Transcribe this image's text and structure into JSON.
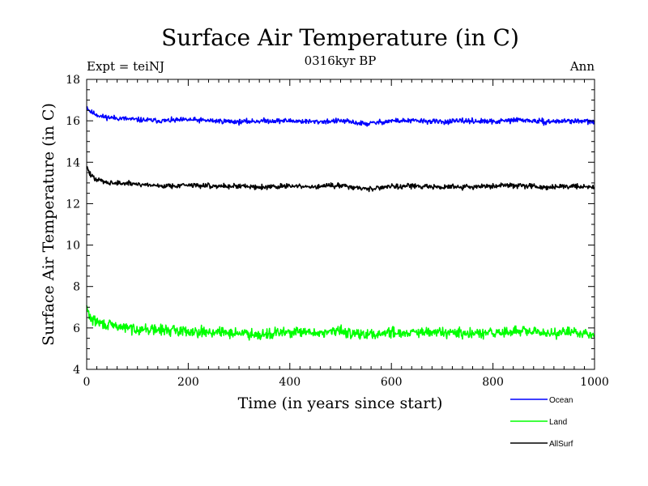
{
  "chart_data": {
    "type": "line",
    "title": "Surface Air Temperature (in C)",
    "subtitle": "0316kyr BP",
    "experiment_label": "Expt = teiNJ",
    "season_label": "Ann",
    "xlabel": "Time (in years since start)",
    "ylabel": "Surface Air Temperature (in C)",
    "xlim": [
      0,
      1000
    ],
    "ylim": [
      4,
      18
    ],
    "x_ticks": [
      0,
      200,
      400,
      600,
      800,
      1000
    ],
    "x_tick_labels": [
      "0",
      "200",
      "400",
      "600",
      "800",
      "1000"
    ],
    "y_ticks": [
      4,
      6,
      8,
      10,
      12,
      14,
      16,
      18
    ],
    "y_tick_labels": [
      "4",
      "6",
      "8",
      "10",
      "12",
      "14",
      "16",
      "18"
    ],
    "grid": false,
    "legend_position": "bottom-right, outside plot",
    "series": [
      {
        "name": "Ocean",
        "color": "#0000ff",
        "x": [
          0,
          5,
          10,
          20,
          30,
          50,
          100,
          150,
          200,
          250,
          300,
          350,
          400,
          450,
          500,
          550,
          600,
          650,
          700,
          750,
          800,
          850,
          900,
          950,
          1000
        ],
        "values": [
          16.7,
          16.5,
          16.4,
          16.3,
          16.2,
          16.15,
          16.05,
          16.0,
          16.05,
          16.0,
          15.95,
          16.0,
          16.0,
          15.95,
          16.0,
          15.85,
          16.0,
          16.0,
          15.95,
          16.0,
          15.95,
          16.05,
          15.95,
          16.0,
          15.95
        ]
      },
      {
        "name": "Land",
        "color": "#00ff00",
        "x": [
          0,
          5,
          10,
          20,
          30,
          50,
          100,
          150,
          200,
          250,
          300,
          350,
          400,
          450,
          500,
          550,
          600,
          650,
          700,
          750,
          800,
          850,
          900,
          950,
          1000
        ],
        "values": [
          7.0,
          6.6,
          6.4,
          6.3,
          6.2,
          6.1,
          5.95,
          5.9,
          5.85,
          5.8,
          5.75,
          5.7,
          5.8,
          5.75,
          5.85,
          5.65,
          5.8,
          5.75,
          5.8,
          5.7,
          5.75,
          5.85,
          5.75,
          5.8,
          5.7
        ]
      },
      {
        "name": "AllSurf",
        "color": "#000000",
        "x": [
          0,
          5,
          10,
          20,
          30,
          50,
          100,
          150,
          200,
          250,
          300,
          350,
          400,
          450,
          500,
          550,
          600,
          650,
          700,
          750,
          800,
          850,
          900,
          950,
          1000
        ],
        "values": [
          13.8,
          13.5,
          13.3,
          13.15,
          13.1,
          13.0,
          12.95,
          12.85,
          12.9,
          12.85,
          12.85,
          12.8,
          12.85,
          12.8,
          12.9,
          12.7,
          12.85,
          12.85,
          12.8,
          12.8,
          12.85,
          12.9,
          12.8,
          12.85,
          12.8
        ]
      }
    ]
  }
}
